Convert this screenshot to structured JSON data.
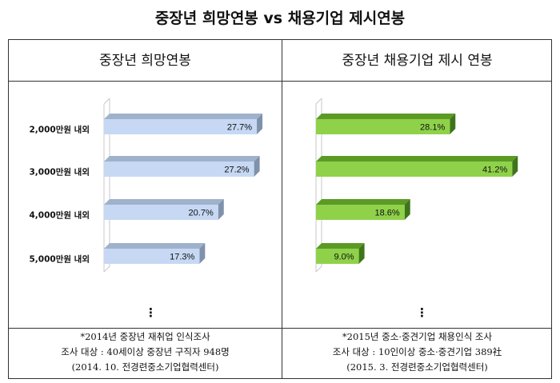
{
  "title": "중장년 희망연봉 vs 채용기업 제시연봉",
  "chart_data": [
    {
      "type": "bar",
      "orientation": "horizontal",
      "title": "중장년 희망연봉",
      "categories": [
        "2,000만원 내외",
        "3,000만원 내외",
        "4,000만원 내외",
        "5,000만원 내외"
      ],
      "values": [
        27.7,
        27.2,
        20.7,
        17.3
      ],
      "value_labels": [
        "27.7%",
        "27.2%",
        "20.7%",
        "17.3%"
      ],
      "unit": "%",
      "xlim": [
        0,
        29
      ],
      "ellipsis": "⋮",
      "colors": {
        "front": "#c6d8f3",
        "top": "#9fb2cc",
        "side": "#7f91ab"
      }
    },
    {
      "type": "bar",
      "orientation": "horizontal",
      "title": "중장년 채용기업 제시 연봉",
      "categories": [
        "2,000만원 내외",
        "3,000만원 내외",
        "4,000만원 내외",
        "5,000만원 내외"
      ],
      "values": [
        28.1,
        41.2,
        18.6,
        9.0
      ],
      "value_labels": [
        "28.1%",
        "41.2%",
        "18.6%",
        "9.0%"
      ],
      "unit": "%",
      "xlim": [
        0,
        42
      ],
      "ellipsis": "⋮",
      "colors": {
        "front": "#8fd24a",
        "top": "#5c9a26",
        "side": "#3e741a"
      }
    }
  ],
  "notes": {
    "left": [
      "*2014년 중장년 재취업 인식조사",
      "조사 대상 : 40세이상 중장년 구직자 948명",
      "(2014. 10. 전경련중소기업협력센터)"
    ],
    "right": [
      "*2015년 중소·중견기업 채용인식 조사",
      "조사 대상 : 10인이상 중소·중견기업 389社",
      "(2015. 3. 전경련중소기업협력센터)"
    ]
  }
}
